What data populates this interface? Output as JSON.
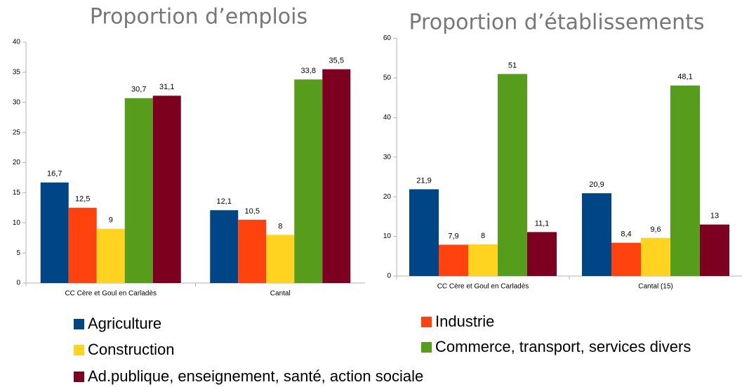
{
  "chart_data": [
    {
      "type": "bar",
      "title": "Proportion d’emplois",
      "categories": [
        "CC Cère et Goul en Carladès",
        "Cantal"
      ],
      "ylim": [
        0,
        40
      ],
      "yticks": [
        0,
        5,
        10,
        15,
        20,
        25,
        30,
        35,
        40
      ],
      "series": [
        {
          "name": "Agriculture",
          "color": "#004586",
          "values": [
            16.7,
            12.1
          ],
          "value_labels": [
            "16,7",
            "12,1"
          ]
        },
        {
          "name": "Industrie",
          "color": "#ff420e",
          "values": [
            12.5,
            10.5
          ],
          "value_labels": [
            "12,5",
            "10,5"
          ]
        },
        {
          "name": "Construction",
          "color": "#ffd320",
          "values": [
            9,
            8
          ],
          "value_labels": [
            "9",
            "8"
          ]
        },
        {
          "name": "Commerce, transport, services divers",
          "color": "#579d1c",
          "values": [
            30.7,
            33.8
          ],
          "value_labels": [
            "30,7",
            "33,8"
          ]
        },
        {
          "name": "Ad.publique, enseignement, santé, action sociale",
          "color": "#7e0021",
          "values": [
            31.1,
            35.5
          ],
          "value_labels": [
            "31,1",
            "35,5"
          ]
        }
      ]
    },
    {
      "type": "bar",
      "title": "Proportion d’établissements",
      "categories": [
        "CC Cère et Goul en Carladès",
        "Cantal (15)"
      ],
      "ylim": [
        0,
        60
      ],
      "yticks": [
        0,
        10,
        20,
        30,
        40,
        50,
        60
      ],
      "series": [
        {
          "name": "Agriculture",
          "color": "#004586",
          "values": [
            21.9,
            20.9
          ],
          "value_labels": [
            "21,9",
            "20,9"
          ]
        },
        {
          "name": "Industrie",
          "color": "#ff420e",
          "values": [
            7.9,
            8.4
          ],
          "value_labels": [
            "7,9",
            "8,4"
          ]
        },
        {
          "name": "Construction",
          "color": "#ffd320",
          "values": [
            8,
            9.6
          ],
          "value_labels": [
            "8",
            "9,6"
          ]
        },
        {
          "name": "Commerce, transport, services divers",
          "color": "#579d1c",
          "values": [
            51,
            48.1
          ],
          "value_labels": [
            "51",
            "48,1"
          ]
        },
        {
          "name": "Ad.publique, enseignement, santé, action sociale",
          "color": "#7e0021",
          "values": [
            11.1,
            13
          ],
          "value_labels": [
            "11,1",
            "13"
          ]
        }
      ]
    }
  ]
}
